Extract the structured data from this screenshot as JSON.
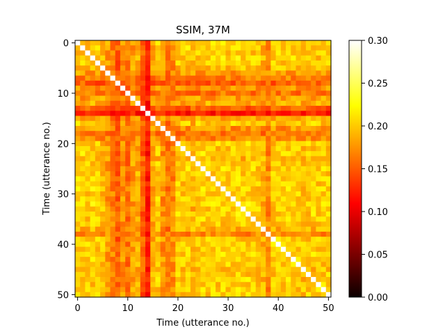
{
  "chart_data": {
    "type": "heatmap",
    "title": "SSIM, 37M",
    "xlabel": "Time (utterance no.)",
    "ylabel": "Time (utterance no.)",
    "n": 51,
    "x_ticks": [
      0,
      10,
      20,
      30,
      40,
      50
    ],
    "y_ticks": [
      0,
      10,
      20,
      30,
      40,
      50
    ],
    "colormap": "hot",
    "colorbar": {
      "vmin": 0.0,
      "vmax": 0.3,
      "ticks": [
        "0.00",
        "0.05",
        "0.10",
        "0.15",
        "0.20",
        "0.25",
        "0.30"
      ],
      "tick_values": [
        0.0,
        0.05,
        0.1,
        0.15,
        0.2,
        0.25,
        0.3
      ]
    },
    "diagonal_value": 0.3,
    "row_col_profile": [
      0.205,
      0.21,
      0.2,
      0.21,
      0.205,
      0.195,
      0.18,
      0.165,
      0.15,
      0.175,
      0.16,
      0.18,
      0.185,
      0.15,
      0.12,
      0.185,
      0.2,
      0.175,
      0.16,
      0.17,
      0.205,
      0.2,
      0.21,
      0.19,
      0.2,
      0.205,
      0.2,
      0.21,
      0.2,
      0.21,
      0.205,
      0.2,
      0.21,
      0.2,
      0.215,
      0.205,
      0.2,
      0.19,
      0.17,
      0.2,
      0.205,
      0.2,
      0.21,
      0.205,
      0.2,
      0.195,
      0.2,
      0.205,
      0.2,
      0.21,
      0.205
    ]
  }
}
